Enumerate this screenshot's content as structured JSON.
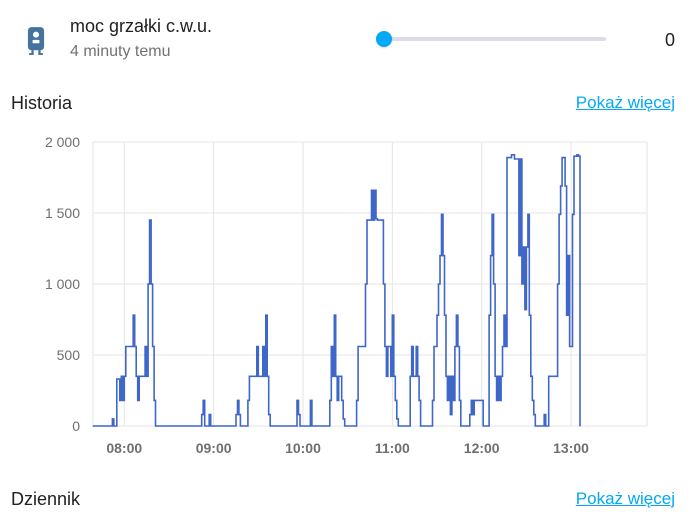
{
  "entity": {
    "name": "moc grzałki c.w.u.",
    "last_changed": "4 minuty temu",
    "value": "0",
    "slider_level": 0,
    "icon": "water-boiler-icon",
    "accent_color": "#03a9f4",
    "icon_color": "#44739e"
  },
  "history": {
    "title": "Historia",
    "more_link": "Pokaż więcej"
  },
  "logbook": {
    "title": "Dziennik",
    "more_link": "Pokaż więcej"
  },
  "chart_data": {
    "type": "line",
    "title": "",
    "xlabel": "",
    "ylabel": "",
    "x_ticks": [
      "08:00",
      "09:00",
      "10:00",
      "11:00",
      "12:00",
      "13:00"
    ],
    "y_ticks": [
      "0",
      "500",
      "1 000",
      "1 500",
      "2 000"
    ],
    "ylim": [
      0,
      2000
    ],
    "xlim": [
      "07:39",
      "13:51"
    ],
    "grid": true,
    "line_color": "#3f67c9",
    "series": [
      {
        "values": [
          [
            "07:39",
            0
          ],
          [
            "07:52",
            0
          ],
          [
            "07:52",
            50
          ],
          [
            "07:53",
            50
          ],
          [
            "07:53",
            0
          ],
          [
            "07:55",
            0
          ],
          [
            "07:55",
            330
          ],
          [
            "07:57",
            330
          ],
          [
            "07:57",
            180
          ],
          [
            "07:58",
            180
          ],
          [
            "07:58",
            350
          ],
          [
            "07:59",
            350
          ],
          [
            "07:59",
            180
          ],
          [
            "08:00",
            180
          ],
          [
            "08:00",
            350
          ],
          [
            "08:01",
            350
          ],
          [
            "08:01",
            560
          ],
          [
            "08:06",
            560
          ],
          [
            "08:06",
            780
          ],
          [
            "08:07",
            780
          ],
          [
            "08:07",
            560
          ],
          [
            "08:08",
            560
          ],
          [
            "08:08",
            350
          ],
          [
            "08:09",
            350
          ],
          [
            "08:09",
            180
          ],
          [
            "08:10",
            180
          ],
          [
            "08:10",
            350
          ],
          [
            "08:14",
            350
          ],
          [
            "08:14",
            560
          ],
          [
            "08:15",
            560
          ],
          [
            "08:15",
            350
          ],
          [
            "08:16",
            350
          ],
          [
            "08:16",
            1000
          ],
          [
            "08:17",
            1000
          ],
          [
            "08:17",
            1450
          ],
          [
            "08:18",
            1450
          ],
          [
            "08:18",
            1000
          ],
          [
            "08:19",
            1000
          ],
          [
            "08:19",
            560
          ],
          [
            "08:20",
            560
          ],
          [
            "08:20",
            180
          ],
          [
            "08:21",
            180
          ],
          [
            "08:21",
            0
          ],
          [
            "08:52",
            0
          ],
          [
            "08:52",
            80
          ],
          [
            "08:53",
            80
          ],
          [
            "08:53",
            180
          ],
          [
            "08:54",
            180
          ],
          [
            "08:54",
            0
          ],
          [
            "08:57",
            0
          ],
          [
            "08:57",
            80
          ],
          [
            "08:58",
            80
          ],
          [
            "08:58",
            0
          ],
          [
            "09:15",
            0
          ],
          [
            "09:15",
            80
          ],
          [
            "09:16",
            80
          ],
          [
            "09:16",
            180
          ],
          [
            "09:17",
            180
          ],
          [
            "09:17",
            80
          ],
          [
            "09:18",
            80
          ],
          [
            "09:18",
            0
          ],
          [
            "09:23",
            0
          ],
          [
            "09:23",
            180
          ],
          [
            "09:24",
            180
          ],
          [
            "09:24",
            350
          ],
          [
            "09:29",
            350
          ],
          [
            "09:29",
            560
          ],
          [
            "09:30",
            560
          ],
          [
            "09:30",
            350
          ],
          [
            "09:33",
            350
          ],
          [
            "09:33",
            560
          ],
          [
            "09:34",
            560
          ],
          [
            "09:34",
            350
          ],
          [
            "09:35",
            350
          ],
          [
            "09:35",
            780
          ],
          [
            "09:36",
            780
          ],
          [
            "09:36",
            350
          ],
          [
            "09:37",
            350
          ],
          [
            "09:37",
            80
          ],
          [
            "09:38",
            80
          ],
          [
            "09:38",
            0
          ],
          [
            "09:56",
            0
          ],
          [
            "09:56",
            180
          ],
          [
            "09:57",
            180
          ],
          [
            "09:57",
            80
          ],
          [
            "09:58",
            80
          ],
          [
            "09:58",
            0
          ],
          [
            "10:05",
            0
          ],
          [
            "10:05",
            180
          ],
          [
            "10:06",
            180
          ],
          [
            "10:06",
            0
          ],
          [
            "10:18",
            0
          ],
          [
            "10:18",
            180
          ],
          [
            "10:19",
            180
          ],
          [
            "10:19",
            560
          ],
          [
            "10:20",
            560
          ],
          [
            "10:20",
            350
          ],
          [
            "10:21",
            350
          ],
          [
            "10:21",
            780
          ],
          [
            "10:22",
            780
          ],
          [
            "10:22",
            350
          ],
          [
            "10:23",
            350
          ],
          [
            "10:23",
            180
          ],
          [
            "10:24",
            180
          ],
          [
            "10:24",
            350
          ],
          [
            "10:26",
            350
          ],
          [
            "10:26",
            180
          ],
          [
            "10:27",
            180
          ],
          [
            "10:27",
            50
          ],
          [
            "10:28",
            50
          ],
          [
            "10:28",
            0
          ],
          [
            "10:36",
            0
          ],
          [
            "10:36",
            180
          ],
          [
            "10:37",
            180
          ],
          [
            "10:37",
            560
          ],
          [
            "10:42",
            560
          ],
          [
            "10:42",
            1000
          ],
          [
            "10:43",
            1000
          ],
          [
            "10:43",
            1450
          ],
          [
            "10:46",
            1450
          ],
          [
            "10:46",
            1660
          ],
          [
            "10:47",
            1660
          ],
          [
            "10:47",
            1450
          ],
          [
            "10:48",
            1450
          ],
          [
            "10:48",
            1660
          ],
          [
            "10:49",
            1660
          ],
          [
            "10:49",
            1460
          ],
          [
            "10:50",
            1460
          ],
          [
            "10:50",
            1450
          ],
          [
            "10:54",
            1450
          ],
          [
            "10:54",
            1000
          ],
          [
            "10:55",
            1000
          ],
          [
            "10:55",
            560
          ],
          [
            "10:56",
            560
          ],
          [
            "10:56",
            350
          ],
          [
            "10:57",
            350
          ],
          [
            "10:57",
            560
          ],
          [
            "10:59",
            560
          ],
          [
            "10:59",
            350
          ],
          [
            "11:00",
            350
          ],
          [
            "11:00",
            780
          ],
          [
            "11:01",
            780
          ],
          [
            "11:01",
            350
          ],
          [
            "11:02",
            350
          ],
          [
            "11:02",
            180
          ],
          [
            "11:03",
            180
          ],
          [
            "11:03",
            50
          ],
          [
            "11:04",
            50
          ],
          [
            "11:04",
            0
          ],
          [
            "11:12",
            0
          ],
          [
            "11:12",
            350
          ],
          [
            "11:13",
            350
          ],
          [
            "11:13",
            560
          ],
          [
            "11:14",
            560
          ],
          [
            "11:14",
            350
          ],
          [
            "11:16",
            350
          ],
          [
            "11:16",
            560
          ],
          [
            "11:17",
            560
          ],
          [
            "11:17",
            350
          ],
          [
            "11:18",
            350
          ],
          [
            "11:18",
            180
          ],
          [
            "11:19",
            180
          ],
          [
            "11:19",
            0
          ],
          [
            "11:27",
            0
          ],
          [
            "11:27",
            180
          ],
          [
            "11:28",
            180
          ],
          [
            "11:28",
            560
          ],
          [
            "11:30",
            560
          ],
          [
            "11:30",
            780
          ],
          [
            "11:31",
            780
          ],
          [
            "11:31",
            1000
          ],
          [
            "11:32",
            1000
          ],
          [
            "11:32",
            1200
          ],
          [
            "11:33",
            1200
          ],
          [
            "11:33",
            1490
          ],
          [
            "11:34",
            1490
          ],
          [
            "11:34",
            1200
          ],
          [
            "11:35",
            1200
          ],
          [
            "11:35",
            780
          ],
          [
            "11:36",
            780
          ],
          [
            "11:36",
            350
          ],
          [
            "11:37",
            350
          ],
          [
            "11:37",
            180
          ],
          [
            "11:38",
            180
          ],
          [
            "11:38",
            350
          ],
          [
            "11:39",
            350
          ],
          [
            "11:39",
            80
          ],
          [
            "11:40",
            80
          ],
          [
            "11:40",
            350
          ],
          [
            "11:41",
            350
          ],
          [
            "11:41",
            180
          ],
          [
            "11:42",
            180
          ],
          [
            "11:42",
            560
          ],
          [
            "11:43",
            560
          ],
          [
            "11:43",
            780
          ],
          [
            "11:44",
            780
          ],
          [
            "11:44",
            560
          ],
          [
            "11:45",
            560
          ],
          [
            "11:45",
            180
          ],
          [
            "11:46",
            180
          ],
          [
            "11:46",
            0
          ],
          [
            "11:52",
            0
          ],
          [
            "11:52",
            80
          ],
          [
            "11:53",
            80
          ],
          [
            "11:53",
            180
          ],
          [
            "11:54",
            180
          ],
          [
            "11:54",
            80
          ],
          [
            "11:55",
            80
          ],
          [
            "11:55",
            180
          ],
          [
            "12:01",
            180
          ],
          [
            "12:01",
            0
          ],
          [
            "12:05",
            0
          ],
          [
            "12:05",
            780
          ],
          [
            "12:06",
            780
          ],
          [
            "12:06",
            1200
          ],
          [
            "12:07",
            1200
          ],
          [
            "12:07",
            1490
          ],
          [
            "12:08",
            1490
          ],
          [
            "12:08",
            1000
          ],
          [
            "12:09",
            1000
          ],
          [
            "12:09",
            350
          ],
          [
            "12:10",
            350
          ],
          [
            "12:10",
            180
          ],
          [
            "12:11",
            180
          ],
          [
            "12:11",
            350
          ],
          [
            "12:12",
            350
          ],
          [
            "12:12",
            180
          ],
          [
            "12:13",
            180
          ],
          [
            "12:13",
            350
          ],
          [
            "12:14",
            350
          ],
          [
            "12:14",
            560
          ],
          [
            "12:15",
            560
          ],
          [
            "12:15",
            780
          ],
          [
            "12:16",
            780
          ],
          [
            "12:16",
            560
          ],
          [
            "12:17",
            560
          ],
          [
            "12:17",
            1890
          ],
          [
            "12:20",
            1890
          ],
          [
            "12:20",
            1910
          ],
          [
            "12:22",
            1910
          ],
          [
            "12:22",
            1880
          ],
          [
            "12:25",
            1880
          ],
          [
            "12:25",
            1200
          ],
          [
            "12:26",
            1200
          ],
          [
            "12:26",
            1880
          ],
          [
            "12:27",
            1880
          ],
          [
            "12:27",
            1000
          ],
          [
            "12:28",
            1000
          ],
          [
            "12:28",
            1260
          ],
          [
            "12:29",
            1260
          ],
          [
            "12:29",
            820
          ],
          [
            "12:30",
            820
          ],
          [
            "12:30",
            1260
          ],
          [
            "12:31",
            1260
          ],
          [
            "12:31",
            1490
          ],
          [
            "12:32",
            1490
          ],
          [
            "12:32",
            780
          ],
          [
            "12:33",
            780
          ],
          [
            "12:33",
            350
          ],
          [
            "12:34",
            350
          ],
          [
            "12:34",
            180
          ],
          [
            "12:35",
            180
          ],
          [
            "12:35",
            80
          ],
          [
            "12:36",
            80
          ],
          [
            "12:36",
            0
          ],
          [
            "12:42",
            0
          ],
          [
            "12:42",
            80
          ],
          [
            "12:43",
            80
          ],
          [
            "12:43",
            0
          ],
          [
            "12:45",
            0
          ],
          [
            "12:45",
            350
          ],
          [
            "12:51",
            350
          ],
          [
            "12:51",
            1000
          ],
          [
            "12:52",
            1000
          ],
          [
            "12:52",
            1490
          ],
          [
            "12:53",
            1490
          ],
          [
            "12:53",
            1690
          ],
          [
            "12:54",
            1690
          ],
          [
            "12:54",
            1890
          ],
          [
            "12:56",
            1890
          ],
          [
            "12:56",
            1690
          ],
          [
            "12:57",
            1690
          ],
          [
            "12:57",
            780
          ],
          [
            "12:58",
            780
          ],
          [
            "12:58",
            1200
          ],
          [
            "12:59",
            1200
          ],
          [
            "12:59",
            560
          ],
          [
            "13:01",
            560
          ],
          [
            "13:01",
            1490
          ],
          [
            "13:02",
            1490
          ],
          [
            "13:02",
            1900
          ],
          [
            "13:04",
            1900
          ],
          [
            "13:04",
            1910
          ],
          [
            "13:05",
            1910
          ],
          [
            "13:05",
            1900
          ],
          [
            "13:06",
            1900
          ],
          [
            "13:06",
            0
          ]
        ]
      }
    ]
  }
}
